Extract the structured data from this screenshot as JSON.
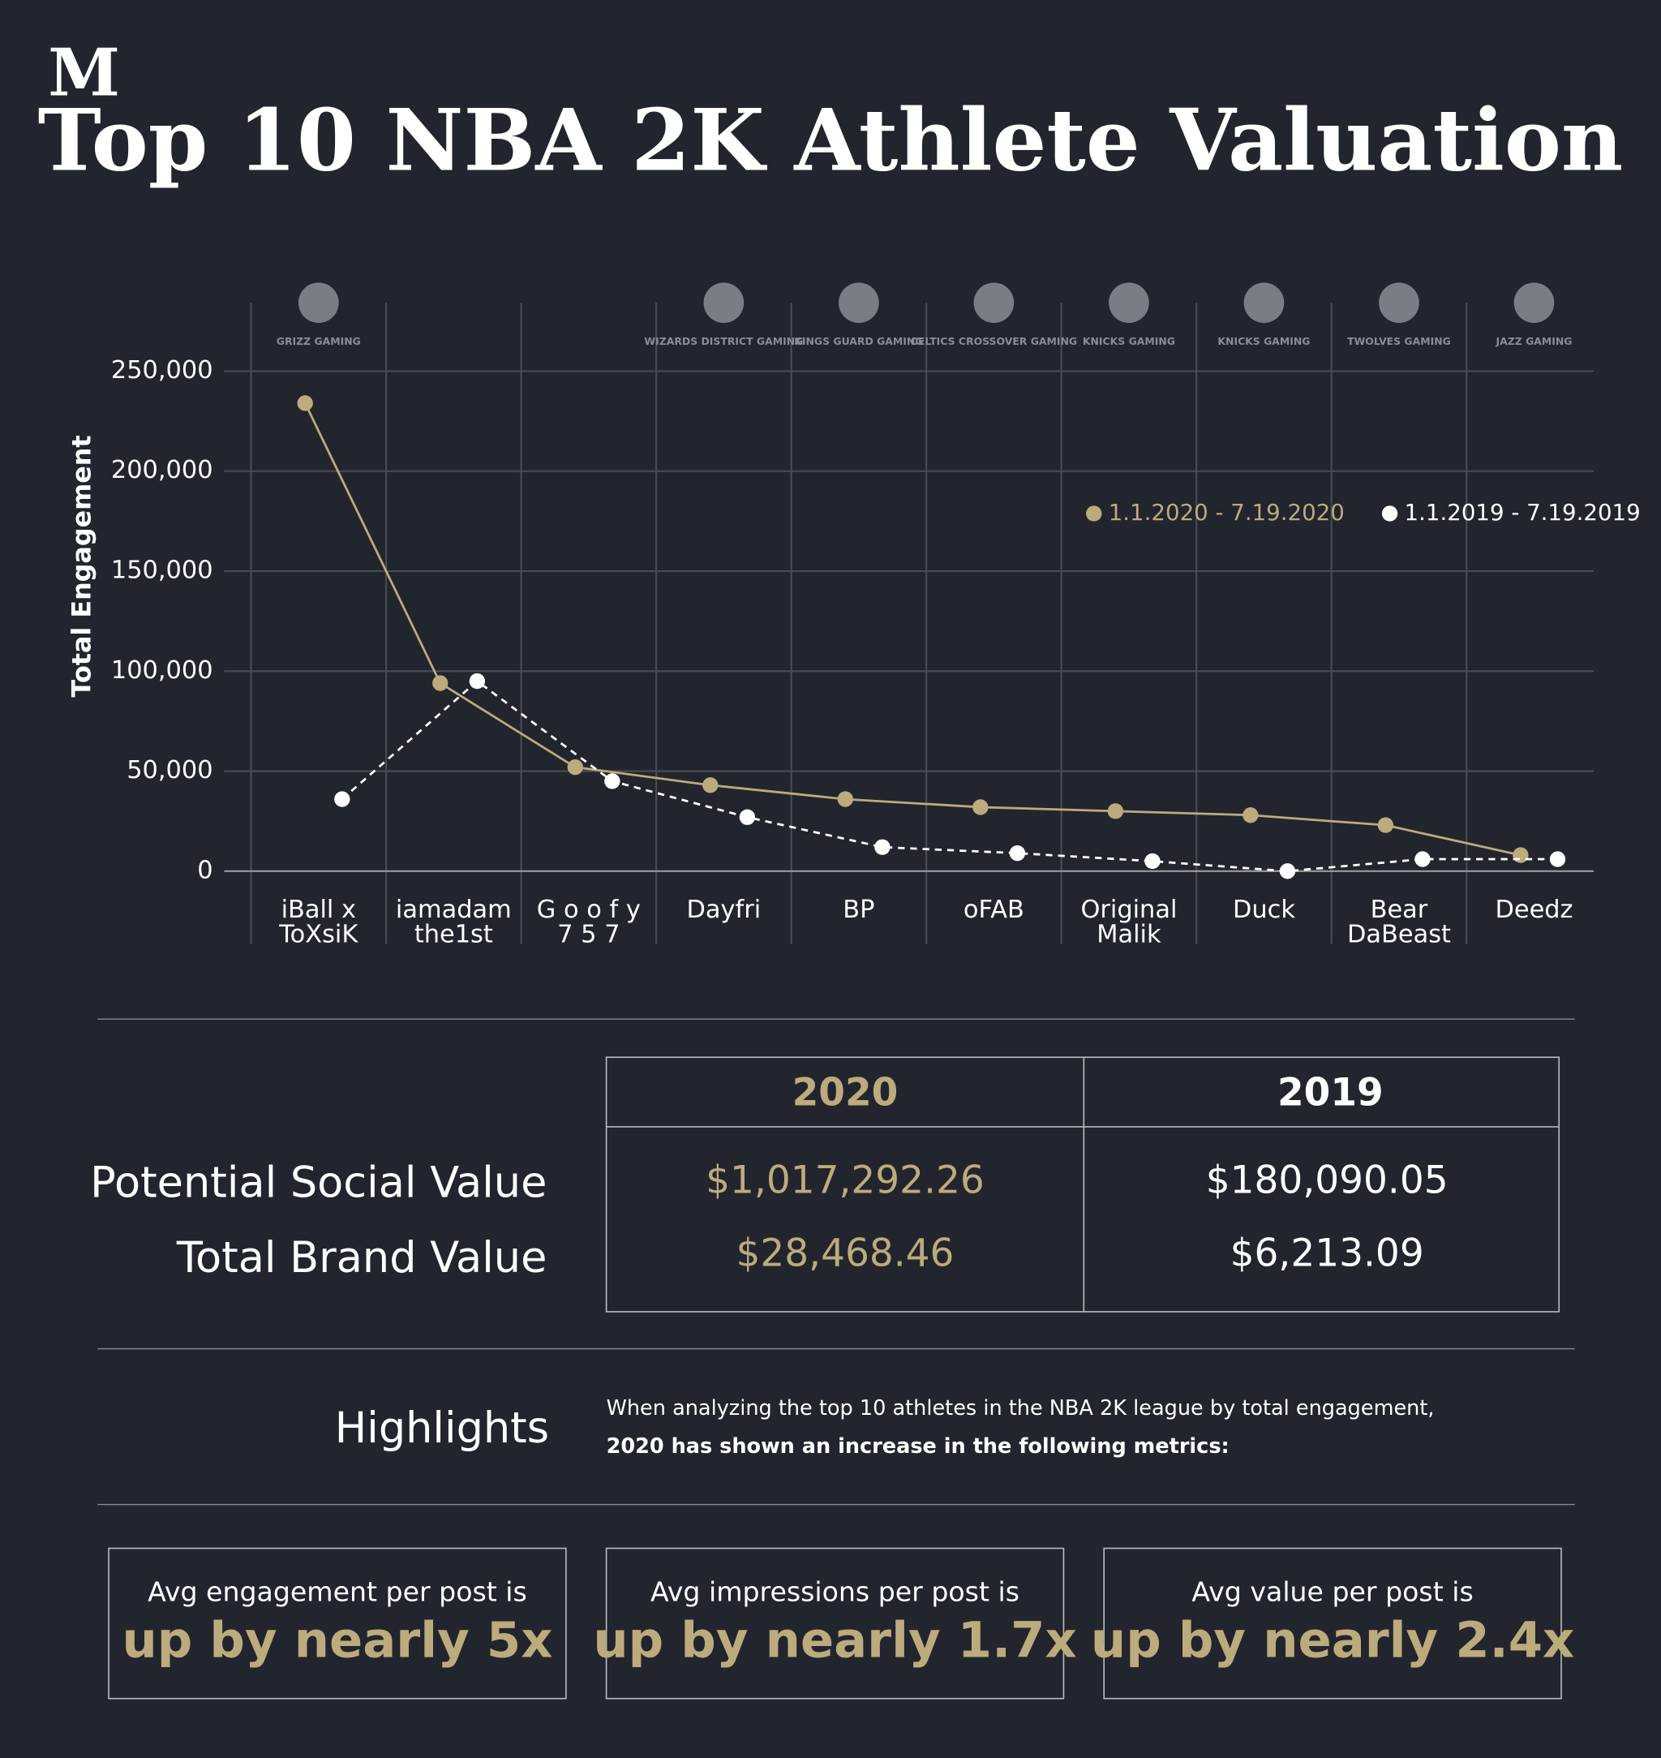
{
  "brand": "M",
  "chart_data": {
    "type": "line",
    "title": "Top 10 NBA 2K Athlete Valuation",
    "y_label": "Total Engagement",
    "categories": [
      "iBall x\nToXsiK",
      "iamadam\nthe1st",
      "G o o f y\n7 5 7",
      "Dayfri",
      "BP",
      "oFAB",
      "Original\nMalik",
      "Duck",
      "Bear\nDaBeast",
      "Deedz"
    ],
    "teams": [
      "GRIZZ GAMING",
      null,
      null,
      "WIZARDS DISTRICT GAMING",
      "KINGS GUARD GAMING",
      "CELTICS CROSSOVER GAMING",
      "KNICKS GAMING",
      "KNICKS GAMING",
      "TWOLVES GAMING",
      "JAZZ GAMING"
    ],
    "series": [
      {
        "name": "1.1.2020 - 7.19.2020",
        "color": "#bcab7c",
        "dashed": false,
        "values": [
          234000,
          94000,
          52000,
          43000,
          36000,
          32000,
          30000,
          28000,
          23000,
          8000
        ]
      },
      {
        "name": "1.1.2019 - 7.19.2019",
        "color": "#ffffff",
        "dashed": true,
        "values": [
          36000,
          95000,
          45000,
          27000,
          12000,
          9000,
          5000,
          0,
          6000,
          6000
        ]
      }
    ],
    "ylim": [
      0,
      250000
    ],
    "yticks": [
      0,
      {
        "value": 50000,
        "label": "50,000"
      },
      {
        "value": 100000,
        "label": "100,000"
      },
      {
        "value": 150000,
        "label": "150,000"
      },
      {
        "value": 200000,
        "label": "200,000"
      },
      {
        "value": 250000,
        "label": "250,000"
      }
    ],
    "grid": true
  },
  "table": {
    "header": [
      "2020",
      "2019"
    ],
    "rows": [
      [
        "Potential Social Value",
        "$1,017,292.26",
        "$180,090.05"
      ],
      [
        "Total Brand Value",
        "$28,468.46",
        "$6,213.09"
      ]
    ]
  },
  "highlights": {
    "title": "Highlights",
    "line1": "When analyzing the top 10 athletes in the NBA 2K league by total engagement,",
    "line2": "2020 has shown an increase in the following metrics:"
  },
  "cards": [
    [
      "Avg engagement per post is",
      "up by nearly 5x"
    ],
    [
      "Avg impressions per post is",
      "up by nearly 1.7x"
    ],
    [
      "Avg value per post is",
      "up by nearly 2.4x"
    ]
  ]
}
